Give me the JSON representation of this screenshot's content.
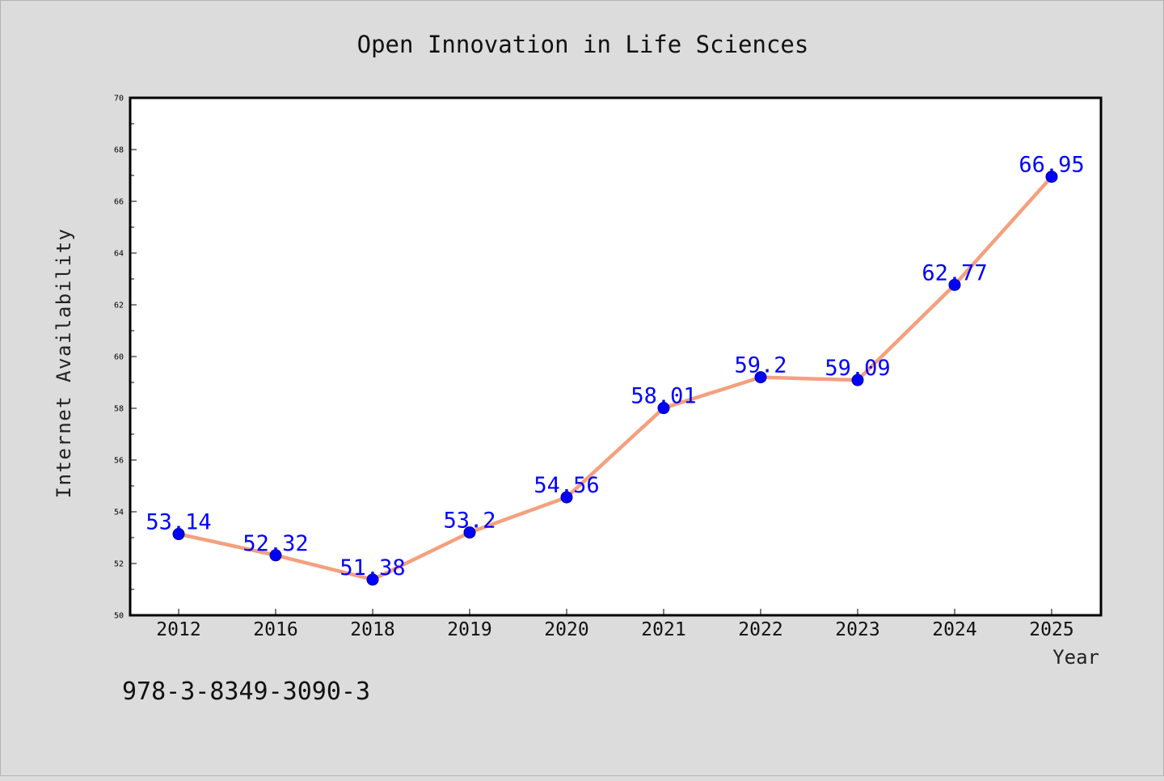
{
  "chart_data": {
    "type": "line",
    "title": "Open Innovation in Life Sciences",
    "xlabel": "Year",
    "ylabel": "Internet Availability",
    "categories": [
      "2012",
      "2016",
      "2018",
      "2019",
      "2020",
      "2021",
      "2022",
      "2023",
      "2024",
      "2025"
    ],
    "values": [
      53.14,
      52.32,
      51.38,
      53.2,
      54.56,
      58.01,
      59.2,
      59.09,
      62.77,
      66.95
    ],
    "data_labels": [
      "53.14",
      "52.32",
      "51.38",
      "53.2",
      "54.56",
      "58.01",
      "59.2",
      "59.09",
      "62.77",
      "66.95"
    ],
    "ylim": [
      50,
      70
    ],
    "yticks": [
      "50",
      "52",
      "54",
      "56",
      "58",
      "60",
      "62",
      "64",
      "66",
      "68",
      "70"
    ],
    "grid": false,
    "legend": "none",
    "colors": {
      "line": "#f4a07e",
      "marker": "#0000ff",
      "label": "#0000ff",
      "background": "#dcdcdc",
      "plot": "#ffffff"
    }
  },
  "footer": {
    "code": "978-3-8349-3090-3"
  }
}
